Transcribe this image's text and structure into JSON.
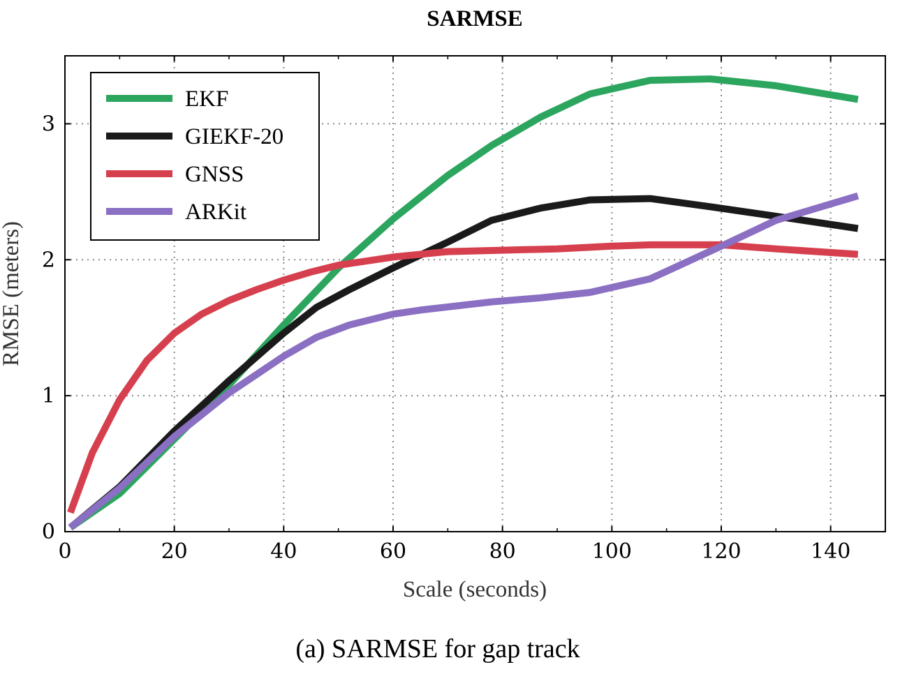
{
  "chart_data": {
    "type": "line",
    "title": "SARMSE",
    "xlabel": "Scale (seconds)",
    "ylabel": "RMSE (meters)",
    "caption": "(a) SARMSE for gap track",
    "xlim": [
      0,
      150
    ],
    "ylim": [
      0,
      3.5
    ],
    "xticks": [
      0,
      20,
      40,
      60,
      80,
      100,
      120,
      140
    ],
    "yticks": [
      0,
      1,
      2,
      3
    ],
    "grid": true,
    "legend_position": "top-left",
    "series": [
      {
        "name": "EKF",
        "color": "#2ca55f",
        "x": [
          1,
          10,
          20,
          30,
          40,
          50,
          60,
          70,
          78,
          87,
          96,
          107,
          118,
          130,
          145
        ],
        "y": [
          0.03,
          0.28,
          0.68,
          1.08,
          1.52,
          1.94,
          2.3,
          2.62,
          2.84,
          3.05,
          3.22,
          3.32,
          3.33,
          3.28,
          3.18
        ]
      },
      {
        "name": "GIEKF-20",
        "color": "#1a1a1a",
        "x": [
          1,
          10,
          20,
          30,
          40,
          46,
          52,
          60,
          70,
          78,
          87,
          96,
          107,
          118,
          130,
          145
        ],
        "y": [
          0.03,
          0.33,
          0.74,
          1.11,
          1.46,
          1.65,
          1.78,
          1.94,
          2.13,
          2.29,
          2.38,
          2.44,
          2.45,
          2.39,
          2.32,
          2.23
        ]
      },
      {
        "name": "GNSS",
        "color": "#d6404e",
        "x": [
          1,
          5,
          10,
          15,
          20,
          25,
          30,
          35,
          40,
          45,
          50,
          60,
          70,
          80,
          90,
          100,
          107,
          120,
          130,
          145
        ],
        "y": [
          0.14,
          0.58,
          0.97,
          1.26,
          1.46,
          1.6,
          1.7,
          1.78,
          1.85,
          1.91,
          1.96,
          2.02,
          2.06,
          2.07,
          2.08,
          2.1,
          2.11,
          2.11,
          2.08,
          2.04
        ]
      },
      {
        "name": "ARKit",
        "color": "#8a6fc2",
        "x": [
          1,
          10,
          20,
          30,
          40,
          46,
          52,
          60,
          65,
          78,
          87,
          96,
          107,
          120,
          130,
          145
        ],
        "y": [
          0.03,
          0.32,
          0.7,
          1.02,
          1.29,
          1.43,
          1.52,
          1.6,
          1.63,
          1.69,
          1.72,
          1.76,
          1.86,
          2.1,
          2.29,
          2.47
        ]
      }
    ]
  }
}
